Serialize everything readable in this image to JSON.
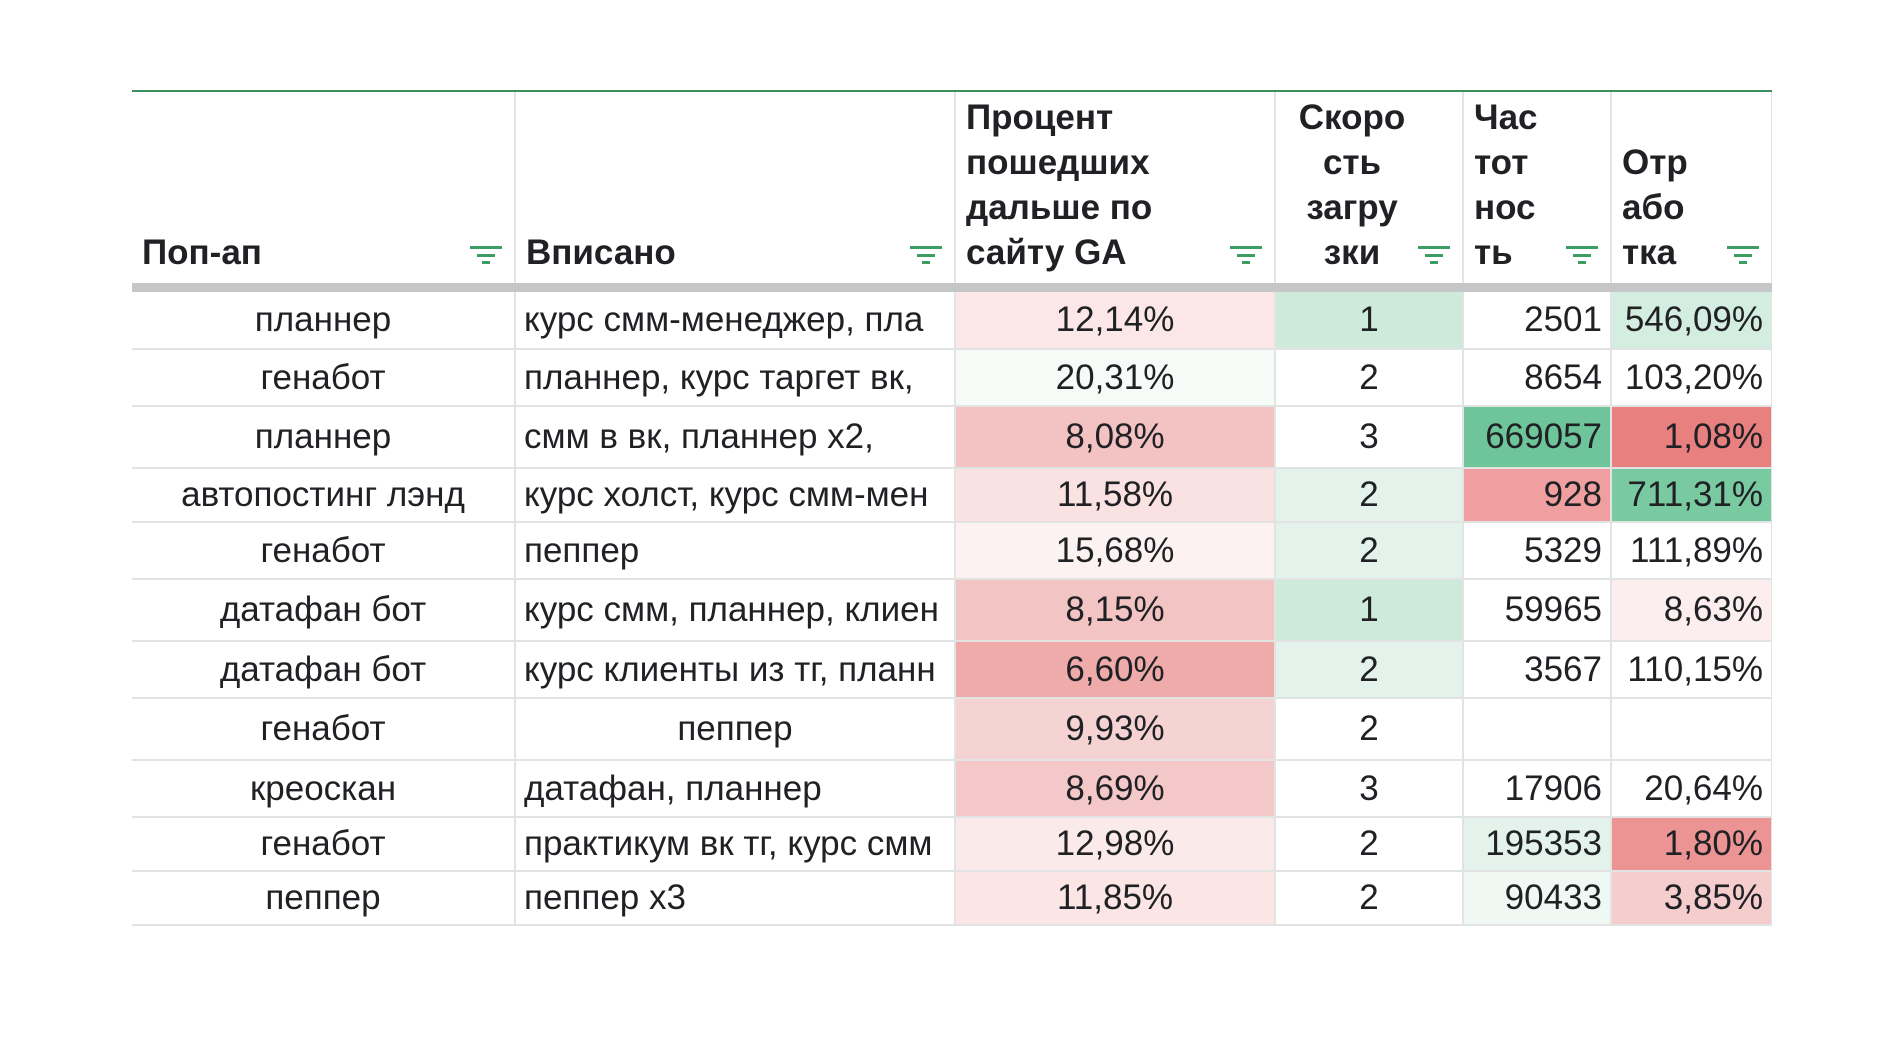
{
  "columns": [
    {
      "label": "Поп-ап"
    },
    {
      "label": "Вписано"
    },
    {
      "label": "Процент пошедших дальше по сайту GA"
    },
    {
      "label": "Скоро сть загру зки"
    },
    {
      "label": "Час тот нос ть"
    },
    {
      "label": "Отр або тка"
    }
  ],
  "rows": [
    {
      "popup": "планнер",
      "inscribed": "курс смм-менеджер, пла",
      "pct_ga": "12,14%",
      "speed": "1",
      "freq": "2501",
      "work": "546,09%"
    },
    {
      "popup": "генабот",
      "inscribed": "планнер, курс таргет вк, ",
      "pct_ga": "20,31%",
      "speed": "2",
      "freq": "8654",
      "work": "103,20%"
    },
    {
      "popup": "планнер",
      "inscribed": "смм в вк, планнер х2,",
      "pct_ga": "8,08%",
      "speed": "3",
      "freq": "669057",
      "work": "1,08%"
    },
    {
      "popup": "автопостинг лэнд",
      "inscribed": "курс холст, курс смм-мен",
      "pct_ga": "11,58%",
      "speed": "2",
      "freq": "928",
      "work": "711,31%"
    },
    {
      "popup": "генабот",
      "inscribed": "пеппер",
      "pct_ga": "15,68%",
      "speed": "2",
      "freq": "5329",
      "work": "111,89%"
    },
    {
      "popup": "датафан бот",
      "inscribed": "курс смм, планнер, клиен",
      "pct_ga": "8,15%",
      "speed": "1",
      "freq": "59965",
      "work": "8,63%"
    },
    {
      "popup": "датафан бот",
      "inscribed": "курс клиенты из тг, планн",
      "pct_ga": "6,60%",
      "speed": "2",
      "freq": "3567",
      "work": "110,15%"
    },
    {
      "popup": "генабот",
      "inscribed": "пеппер",
      "pct_ga": "9,93%",
      "speed": "2",
      "freq": "",
      "work": ""
    },
    {
      "popup": "креоскан",
      "inscribed": "датафан, планнер",
      "pct_ga": "8,69%",
      "speed": "3",
      "freq": "17906",
      "work": "20,64%"
    },
    {
      "popup": "генабот",
      "inscribed": "практикум вк тг, курс смм",
      "pct_ga": "12,98%",
      "speed": "2",
      "freq": "195353",
      "work": "1,80%"
    },
    {
      "popup": "пеппер",
      "inscribed": "пеппер х3",
      "pct_ga": "11,85%",
      "speed": "2",
      "freq": "90433",
      "work": "3,85%"
    }
  ],
  "cell_styles": [
    {
      "pct_ga": "#fbe7e7",
      "speed": "#cdeadb",
      "freq": "#ffffff",
      "work": "#d3ede0"
    },
    {
      "pct_ga": "#f6fbf8",
      "speed": "#ffffff",
      "freq": "#ffffff",
      "work": "#ffffff"
    },
    {
      "pct_ga": "#f3c2c2",
      "speed": "#ffffff",
      "freq": "#6fc59a",
      "work": "#e88080"
    },
    {
      "pct_ga": "#fbe2e2",
      "speed": "#e3f3eb",
      "freq": "#ef9f9f",
      "work": "#7acaa1"
    },
    {
      "pct_ga": "#fdf2f2",
      "speed": "#e3f3eb",
      "freq": "#ffffff",
      "work": "#ffffff"
    },
    {
      "pct_ga": "#f3c4c4",
      "speed": "#cdeadb",
      "freq": "#ffffff",
      "work": "#fceeee"
    },
    {
      "pct_ga": "#efaaaa",
      "speed": "#e3f3eb",
      "freq": "#ffffff",
      "work": "#ffffff"
    },
    {
      "pct_ga": "#f6d3d3",
      "speed": "#ffffff",
      "freq": "#ffffff",
      "work": "#ffffff"
    },
    {
      "pct_ga": "#f4c8c8",
      "speed": "#ffffff",
      "freq": "#ffffff",
      "work": "#ffffff"
    },
    {
      "pct_ga": "#fbeaea",
      "speed": "#ffffff",
      "freq": "#e3f3eb",
      "work": "#ec9494"
    },
    {
      "pct_ga": "#fbe5e5",
      "speed": "#ffffff",
      "freq": "#f0f8f4",
      "work": "#f5cdcd"
    }
  ],
  "colors": {
    "header_top_border": "#3e8d5f",
    "filter_icon": "#3e9d62",
    "gridline": "#e2e3e3",
    "header_divider": "#c4c6c8"
  }
}
